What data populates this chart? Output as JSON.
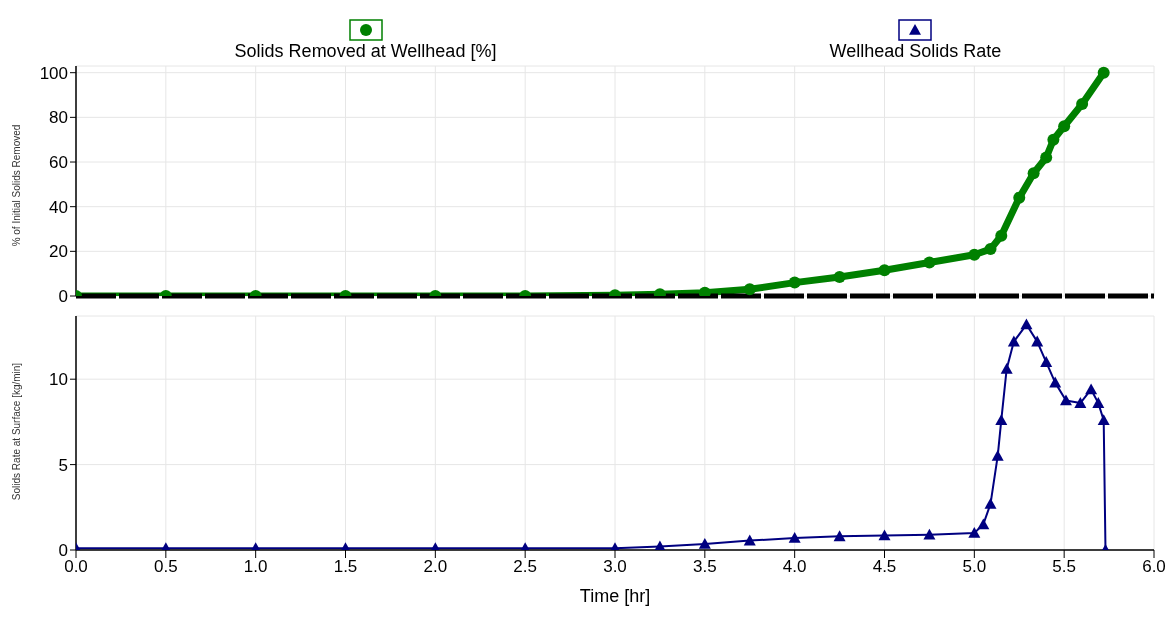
{
  "chart_data": [
    {
      "type": "line",
      "ylabel": "% of Initial Solids Removed",
      "legend": "top",
      "grid": true,
      "marker": "circle",
      "line_style": "solid",
      "tick_labels": "y",
      "xlim": [
        0,
        6
      ],
      "xticks": [
        0,
        0.5,
        1,
        1.5,
        2,
        2.5,
        3,
        3.5,
        4,
        4.5,
        5,
        5.5,
        6
      ],
      "ylim": [
        0,
        103
      ],
      "yticks": [
        0,
        20,
        40,
        60,
        80,
        100
      ],
      "series": [
        {
          "name": "Solids Removed at Wellhead [%]",
          "color": "#008000",
          "x": [
            0,
            0.5,
            1,
            1.5,
            2,
            2.5,
            3,
            3.25,
            3.5,
            3.75,
            4,
            4.25,
            4.5,
            4.75,
            5,
            5.09,
            5.15,
            5.25,
            5.33,
            5.4,
            5.44,
            5.5,
            5.6,
            5.72
          ],
          "values": [
            0,
            0,
            0,
            0,
            0,
            0,
            0.3,
            0.8,
            1.5,
            3,
            6,
            8.5,
            11.5,
            15,
            18.5,
            21,
            27,
            44,
            55,
            62,
            70,
            76,
            86,
            100
          ]
        }
      ]
    },
    {
      "type": "line",
      "xlabel": "Time [hr]",
      "ylabel": "Solids Rate at Surface [kg/min]",
      "legend": "top",
      "grid": true,
      "marker": "triangle",
      "line_style": "solid",
      "xlim": [
        0,
        6
      ],
      "xticks": [
        {
          "value": 0,
          "label": "0.0"
        },
        {
          "value": 0.5,
          "label": "0.5"
        },
        {
          "value": 1,
          "label": "1.0"
        },
        {
          "value": 1.5,
          "label": "1.5"
        },
        {
          "value": 2,
          "label": "2.0"
        },
        {
          "value": 2.5,
          "label": "2.5"
        },
        {
          "value": 3,
          "label": "3.0"
        },
        {
          "value": 3.5,
          "label": "3.5"
        },
        {
          "value": 4,
          "label": "4.0"
        },
        {
          "value": 4.5,
          "label": "4.5"
        },
        {
          "value": 5,
          "label": "5.0"
        },
        {
          "value": 5.5,
          "label": "5.5"
        },
        {
          "value": 6,
          "label": "6.0"
        }
      ],
      "ylim": [
        0,
        13.7
      ],
      "yticks": [
        0,
        5,
        10
      ],
      "series": [
        {
          "name": "Wellhead Solids Rate",
          "color": "#000080",
          "x": [
            0,
            0.5,
            1,
            1.5,
            2,
            2.5,
            3,
            3.25,
            3.5,
            3.75,
            4,
            4.25,
            4.5,
            4.75,
            5,
            5.05,
            5.09,
            5.13,
            5.15,
            5.18,
            5.22,
            5.29,
            5.35,
            5.4,
            5.45,
            5.51,
            5.59,
            5.65,
            5.69,
            5.72,
            5.73
          ],
          "values": [
            0.1,
            0.1,
            0.1,
            0.1,
            0.1,
            0.1,
            0.1,
            0.2,
            0.35,
            0.55,
            0.7,
            0.8,
            0.85,
            0.9,
            1,
            1.5,
            2.7,
            5.5,
            7.6,
            10.6,
            12.2,
            13.2,
            12.2,
            11,
            9.8,
            8.75,
            8.6,
            9.4,
            8.6,
            7.6,
            0
          ]
        }
      ]
    }
  ]
}
